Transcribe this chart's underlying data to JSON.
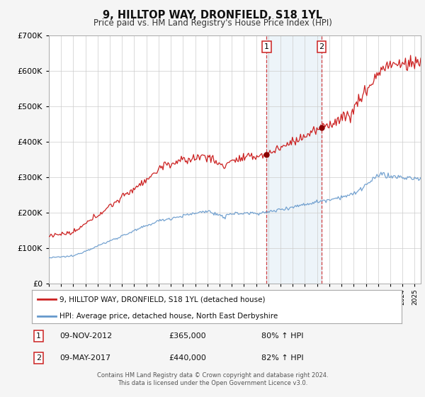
{
  "title": "9, HILLTOP WAY, DRONFIELD, S18 1YL",
  "subtitle": "Price paid vs. HM Land Registry's House Price Index (HPI)",
  "legend_line1": "9, HILLTOP WAY, DRONFIELD, S18 1YL (detached house)",
  "legend_line2": "HPI: Average price, detached house, North East Derbyshire",
  "footer1": "Contains HM Land Registry data © Crown copyright and database right 2024.",
  "footer2": "This data is licensed under the Open Government Licence v3.0.",
  "event1_date": "09-NOV-2012",
  "event1_price": "£365,000",
  "event1_pct": "80% ↑ HPI",
  "event2_date": "09-MAY-2017",
  "event2_price": "£440,000",
  "event2_pct": "82% ↑ HPI",
  "event1_year": 2012.86,
  "event2_year": 2017.36,
  "event1_val": 365000,
  "event2_val": 440000,
  "red_line_color": "#cc2222",
  "blue_line_color": "#6699cc",
  "background_color": "#f5f5f5",
  "plot_bg_color": "#ffffff",
  "shade_color": "#cce0f0",
  "grid_color": "#cccccc",
  "ylim": [
    0,
    700000
  ],
  "xlim_start": 1995.0,
  "xlim_end": 2025.5
}
